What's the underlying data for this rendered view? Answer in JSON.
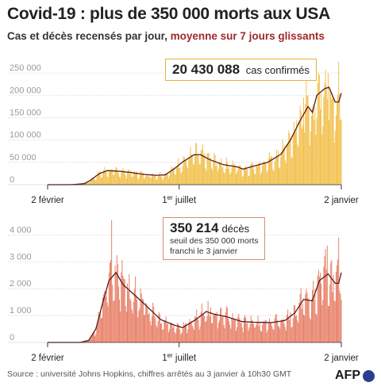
{
  "title": "Covid-19 : plus de 350 000 morts aux USA",
  "subtitle_main": "Cas et décès recensés par jour, ",
  "subtitle_avg": "moyenne sur 7 jours glissants",
  "source": "Source : université Johns Hopkins, chiffres arrêtés au 3 janvier à 10h30 GMT",
  "logo": "AFP",
  "colors": {
    "cases_bar": "#f2c14e",
    "deaths_bar": "#e8826a",
    "avg_line": "#5a1a1e"
  },
  "chart_data": [
    {
      "type": "bar",
      "name": "cas",
      "annotation_value": "20 430 088",
      "annotation_label": "cas confirmés",
      "x_labels": [
        "2 février",
        "1er juillet",
        "2 janvier"
      ],
      "x_range_days": [
        "2020-02-02",
        "2021-01-02"
      ],
      "ylim": [
        0,
        275000
      ],
      "yticks": [
        0,
        50000,
        100000,
        150000,
        200000,
        250000
      ],
      "ytick_labels": [
        "0",
        "50 000",
        "100 000",
        "150 000",
        "200 000",
        "250 000"
      ],
      "avg_points": [
        [
          "2020-02-02",
          0
        ],
        [
          "2020-03-01",
          100
        ],
        [
          "2020-03-15",
          2500
        ],
        [
          "2020-03-22",
          10000
        ],
        [
          "2020-04-01",
          25000
        ],
        [
          "2020-04-10",
          31500
        ],
        [
          "2020-04-24",
          30000
        ],
        [
          "2020-05-08",
          27000
        ],
        [
          "2020-05-22",
          23000
        ],
        [
          "2020-06-05",
          21000
        ],
        [
          "2020-06-15",
          22000
        ],
        [
          "2020-06-25",
          35000
        ],
        [
          "2020-07-05",
          51000
        ],
        [
          "2020-07-18",
          67000
        ],
        [
          "2020-07-25",
          67500
        ],
        [
          "2020-08-05",
          56000
        ],
        [
          "2020-08-20",
          45000
        ],
        [
          "2020-09-05",
          40000
        ],
        [
          "2020-09-12",
          35000
        ],
        [
          "2020-09-25",
          42000
        ],
        [
          "2020-10-10",
          50000
        ],
        [
          "2020-10-25",
          68000
        ],
        [
          "2020-11-05",
          100000
        ],
        [
          "2020-11-15",
          140000
        ],
        [
          "2020-11-25",
          175000
        ],
        [
          "2020-11-30",
          162000
        ],
        [
          "2020-12-05",
          200000
        ],
        [
          "2020-12-14",
          215000
        ],
        [
          "2020-12-19",
          218000
        ],
        [
          "2020-12-26",
          185000
        ],
        [
          "2020-12-30",
          185000
        ],
        [
          "2021-01-02",
          205000
        ]
      ],
      "peaks": [
        [
          "2020-12-18",
          250000
        ],
        [
          "2020-12-30",
          275000
        ],
        [
          "2020-11-20",
          195000
        ]
      ]
    },
    {
      "type": "bar",
      "name": "décès",
      "annotation_value": "350 214",
      "annotation_label": "décès",
      "annotation_note": [
        "seuil des 350 000 morts",
        "franchi le 3 janvier"
      ],
      "x_labels": [
        "2 février",
        "1er juillet",
        "2 janvier"
      ],
      "x_range_days": [
        "2020-02-02",
        "2021-01-02"
      ],
      "ylim": [
        0,
        4600
      ],
      "yticks": [
        0,
        1000,
        2000,
        3000,
        4000
      ],
      "ytick_labels": [
        "0",
        "1 000",
        "2 000",
        "3 000",
        "4 000"
      ],
      "avg_points": [
        [
          "2020-02-02",
          0
        ],
        [
          "2020-03-10",
          0
        ],
        [
          "2020-03-20",
          80
        ],
        [
          "2020-03-28",
          500
        ],
        [
          "2020-04-05",
          1500
        ],
        [
          "2020-04-12",
          2300
        ],
        [
          "2020-04-20",
          2600
        ],
        [
          "2020-04-28",
          2150
        ],
        [
          "2020-05-10",
          1800
        ],
        [
          "2020-05-25",
          1350
        ],
        [
          "2020-06-10",
          850
        ],
        [
          "2020-06-25",
          650
        ],
        [
          "2020-07-05",
          550
        ],
        [
          "2020-07-20",
          850
        ],
        [
          "2020-08-01",
          1150
        ],
        [
          "2020-08-10",
          1050
        ],
        [
          "2020-08-25",
          950
        ],
        [
          "2020-09-10",
          780
        ],
        [
          "2020-09-25",
          750
        ],
        [
          "2020-10-15",
          740
        ],
        [
          "2020-10-30",
          820
        ],
        [
          "2020-11-10",
          1100
        ],
        [
          "2020-11-20",
          1600
        ],
        [
          "2020-11-30",
          1550
        ],
        [
          "2020-12-08",
          2300
        ],
        [
          "2020-12-18",
          2550
        ],
        [
          "2020-12-26",
          2200
        ],
        [
          "2020-12-30",
          2200
        ],
        [
          "2021-01-02",
          2600
        ]
      ],
      "peaks": [
        [
          "2020-04-15",
          4550
        ],
        [
          "2020-12-30",
          3900
        ],
        [
          "2020-12-17",
          3600
        ]
      ]
    }
  ]
}
